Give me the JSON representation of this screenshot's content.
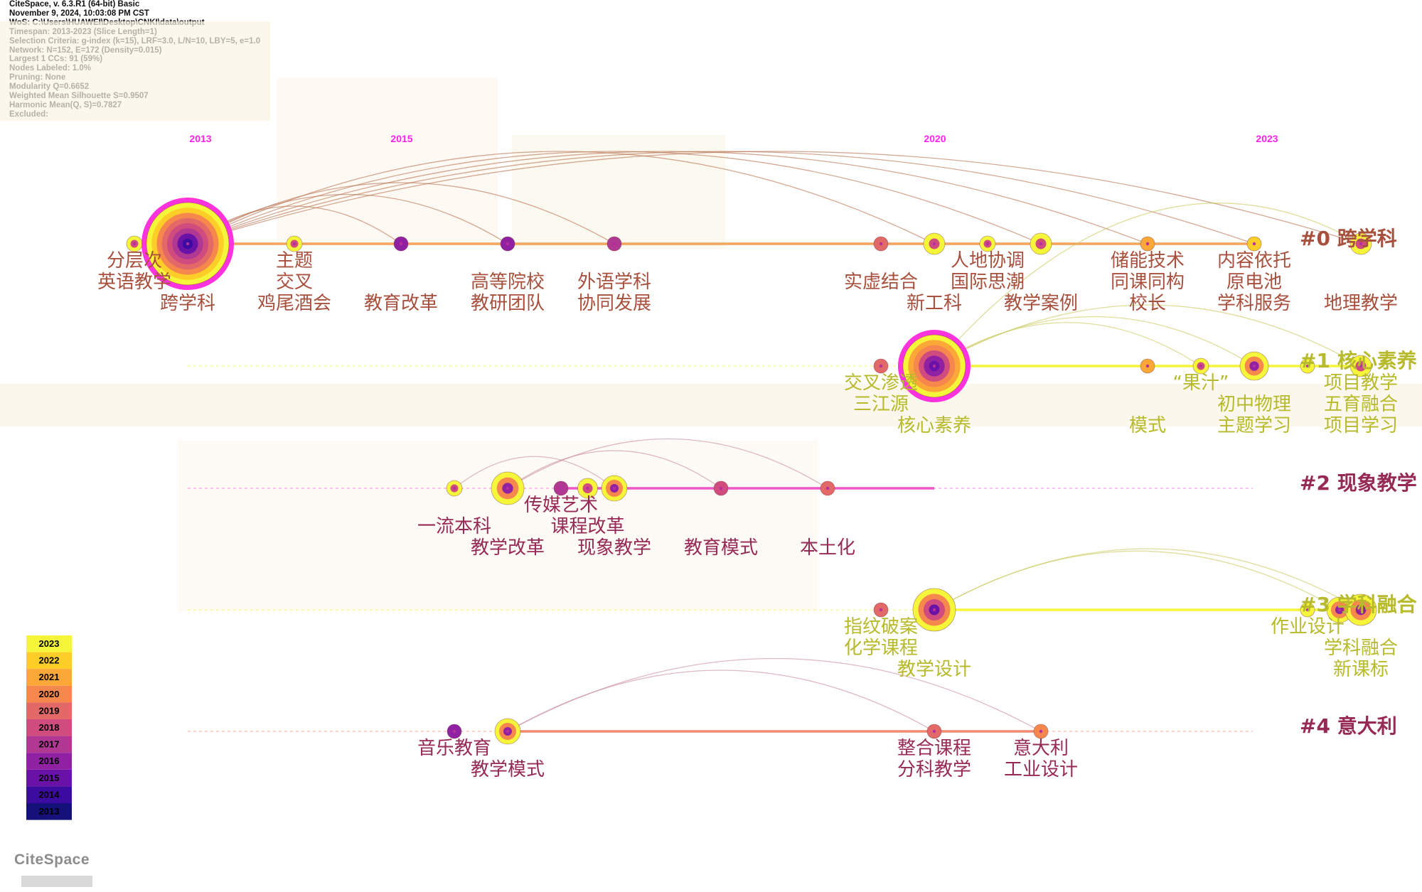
{
  "meta_lines": [
    "CiteSpace, v. 6.3.R1 (64-bit) Basic",
    "November 9, 2024, 10:03:08 PM CST",
    "WoS: C:\\Users\\HUAWEI\\Desktop\\CNKI\\data\\output",
    "Timespan: 2013-2023 (Slice Length=1)",
    "Selection Criteria: g-index (k=15), LRF=3.0, L/N=10, LBY=5, e=1.0",
    "Network: N=152, E=172 (Density=0.015)",
    "Largest 1 CCs: 91 (59%)",
    "Nodes Labeled: 1.0%",
    "Pruning: None",
    "Modularity Q=0.6652",
    "Weighted Mean Silhouette S=0.9507",
    "Harmonic Mean(Q, S)=0.7827",
    "Excluded:"
  ],
  "logo_text": "CiteSpace",
  "chart_data": {
    "type": "timeline",
    "x_range": [
      2012.3,
      2023.5
    ],
    "year_labels": [
      2013,
      2015,
      2020,
      2023
    ],
    "legend": {
      "years": [
        2023,
        2022,
        2021,
        2020,
        2019,
        2018,
        2017,
        2016,
        2015,
        2014,
        2013
      ],
      "colors": [
        "#f5f53a",
        "#fcce27",
        "#fba838",
        "#f6874d",
        "#e36868",
        "#d04c7e",
        "#b03792",
        "#8f21a2",
        "#6a11a8",
        "#3c0ba0",
        "#16107a"
      ]
    },
    "clusters": [
      {
        "id": "#0",
        "name": "跨学科",
        "label_color": "#a8503e",
        "line_color": "#f6a45a",
        "line_style": "solid",
        "line_start": 2013,
        "line_end": 2023,
        "nodes": [
          {
            "x": 2012.5,
            "size": 11,
            "year": 2013
          },
          {
            "x": 2013.0,
            "size": 58,
            "year": 2017,
            "ring": true
          },
          {
            "x": 2014.0,
            "size": 11,
            "year": 2014
          },
          {
            "x": 2015.0,
            "size": 10,
            "year": 2016
          },
          {
            "x": 2016.0,
            "size": 10,
            "year": 2016
          },
          {
            "x": 2017.0,
            "size": 10,
            "year": 2017
          },
          {
            "x": 2019.5,
            "size": 10,
            "year": 2019
          },
          {
            "x": 2020.0,
            "size": 15,
            "year": 2019
          },
          {
            "x": 2020.5,
            "size": 11,
            "year": 2020
          },
          {
            "x": 2021.0,
            "size": 15,
            "year": 2020
          },
          {
            "x": 2022.0,
            "size": 10,
            "year": 2021
          },
          {
            "x": 2023.0,
            "size": 10,
            "year": 2022
          },
          {
            "x": 2024.0,
            "size": 15,
            "year": 2023
          }
        ],
        "labels": [
          {
            "x": 2012.5,
            "row": 0,
            "text": "分层次"
          },
          {
            "x": 2012.5,
            "row": 1,
            "text": "英语教学"
          },
          {
            "x": 2013.0,
            "row": 2,
            "text": "跨学科"
          },
          {
            "x": 2014.0,
            "row": 0,
            "text": "主题"
          },
          {
            "x": 2014.0,
            "row": 1,
            "text": "交叉"
          },
          {
            "x": 2014.0,
            "row": 2,
            "text": "鸡尾酒会"
          },
          {
            "x": 2015.0,
            "row": 2,
            "text": "教育改革"
          },
          {
            "x": 2016.0,
            "row": 1,
            "text": "高等院校"
          },
          {
            "x": 2016.0,
            "row": 2,
            "text": "教研团队"
          },
          {
            "x": 2017.0,
            "row": 1,
            "text": "外语学科"
          },
          {
            "x": 2017.0,
            "row": 2,
            "text": "协同发展"
          },
          {
            "x": 2019.5,
            "row": 1,
            "text": "实虚结合"
          },
          {
            "x": 2020.5,
            "row": 0,
            "text": "人地协调"
          },
          {
            "x": 2020.5,
            "row": 1,
            "text": "国际思潮"
          },
          {
            "x": 2020.0,
            "row": 2,
            "text": "新工科"
          },
          {
            "x": 2021.0,
            "row": 2,
            "text": "教学案例"
          },
          {
            "x": 2022.0,
            "row": 0,
            "text": "储能技术"
          },
          {
            "x": 2022.0,
            "row": 1,
            "text": "同课同构"
          },
          {
            "x": 2022.0,
            "row": 2,
            "text": "校长"
          },
          {
            "x": 2023.0,
            "row": 0,
            "text": "内容依托"
          },
          {
            "x": 2023.0,
            "row": 1,
            "text": "原电池"
          },
          {
            "x": 2023.0,
            "row": 2,
            "text": "学科服务"
          },
          {
            "x": 2024.0,
            "row": 2,
            "text": "地理教学"
          }
        ]
      },
      {
        "id": "#1",
        "name": "核心素养",
        "label_color": "#b7ba2a",
        "line_color": "#f5f53a",
        "line_style": "solid",
        "line_start": 2020.0,
        "line_end": 2024.0,
        "nodes": [
          {
            "x": 2019.5,
            "size": 10,
            "year": 2019
          },
          {
            "x": 2020.0,
            "size": 44,
            "year": 2019,
            "ring": true
          },
          {
            "x": 2022.0,
            "size": 10,
            "year": 2021
          },
          {
            "x": 2022.5,
            "size": 11,
            "year": 2022
          },
          {
            "x": 2023.0,
            "size": 20,
            "year": 2023
          },
          {
            "x": 2023.5,
            "size": 10,
            "year": 2023
          },
          {
            "x": 2024.0,
            "size": 15,
            "year": 2023
          }
        ],
        "labels": [
          {
            "x": 2019.5,
            "row": 0,
            "text": "交叉渗透"
          },
          {
            "x": 2019.5,
            "row": 1,
            "text": "三江源"
          },
          {
            "x": 2020.0,
            "row": 2,
            "text": "核心素养"
          },
          {
            "x": 2022.5,
            "row": 0,
            "text": "“果汁”"
          },
          {
            "x": 2022.0,
            "row": 2,
            "text": "模式"
          },
          {
            "x": 2023.0,
            "row": 1,
            "text": "初中物理"
          },
          {
            "x": 2023.0,
            "row": 2,
            "text": "主题学习"
          },
          {
            "x": 2024.0,
            "row": 0,
            "text": "项目教学"
          },
          {
            "x": 2024.0,
            "row": 1,
            "text": "五育融合"
          },
          {
            "x": 2024.0,
            "row": 2,
            "text": "项目学习"
          }
        ]
      },
      {
        "id": "#2",
        "name": "现象教学",
        "label_color": "#962a55",
        "line_color": "#ee57c8",
        "line_style": "solid",
        "line_start": 2016.5,
        "line_end": 2020.0,
        "nodes": [
          {
            "x": 2015.5,
            "size": 11,
            "year": 2016
          },
          {
            "x": 2016.0,
            "size": 23,
            "year": 2021,
            "ring": false
          },
          {
            "x": 2016.5,
            "size": 10,
            "year": 2017
          },
          {
            "x": 2016.75,
            "size": 14,
            "year": 2017
          },
          {
            "x": 2017.0,
            "size": 18,
            "year": 2022
          },
          {
            "x": 2018.0,
            "size": 10,
            "year": 2018
          },
          {
            "x": 2019.0,
            "size": 10,
            "year": 2019
          }
        ],
        "labels": [
          {
            "x": 2016.5,
            "row": 0,
            "text": "传媒艺术"
          },
          {
            "x": 2016.75,
            "row": 1,
            "text": "课程改革"
          },
          {
            "x": 2015.5,
            "row": 1,
            "text": "一流本科"
          },
          {
            "x": 2016.0,
            "row": 2,
            "text": "教学改革"
          },
          {
            "x": 2017.0,
            "row": 2,
            "text": "现象教学"
          },
          {
            "x": 2018.0,
            "row": 2,
            "text": "教育模式"
          },
          {
            "x": 2019.0,
            "row": 2,
            "text": "本土化"
          }
        ]
      },
      {
        "id": "#3",
        "name": "学科融合",
        "label_color": "#b7ba2a",
        "line_color": "#f5f53a",
        "line_style": "solid",
        "line_start": 2020.0,
        "line_end": 2023.8,
        "nodes": [
          {
            "x": 2019.5,
            "size": 10,
            "year": 2019
          },
          {
            "x": 2020.0,
            "size": 30,
            "year": 2023
          },
          {
            "x": 2023.5,
            "size": 10,
            "year": 2023
          },
          {
            "x": 2023.8,
            "size": 18,
            "year": 2023
          },
          {
            "x": 2024.0,
            "size": 22,
            "year": 2023
          }
        ],
        "labels": [
          {
            "x": 2019.5,
            "row": 0,
            "text": "指纹破案"
          },
          {
            "x": 2019.5,
            "row": 1,
            "text": "化学课程"
          },
          {
            "x": 2020.0,
            "row": 2,
            "text": "教学设计"
          },
          {
            "x": 2023.5,
            "row": 0,
            "text": "作业设计"
          },
          {
            "x": 2024.0,
            "row": 1,
            "text": "学科融合"
          },
          {
            "x": 2024.0,
            "row": 2,
            "text": "新课标"
          }
        ]
      },
      {
        "id": "#4",
        "name": "意大利",
        "label_color": "#962a55",
        "line_color": "#f28a72",
        "line_style": "solid",
        "line_start": 2016.0,
        "line_end": 2021.0,
        "nodes": [
          {
            "x": 2015.5,
            "size": 10,
            "year": 2016
          },
          {
            "x": 2016.0,
            "size": 18,
            "year": 2022
          },
          {
            "x": 2020.0,
            "size": 10,
            "year": 2019
          },
          {
            "x": 2021.0,
            "size": 10,
            "year": 2020
          }
        ],
        "labels": [
          {
            "x": 2015.5,
            "row": 0,
            "text": "音乐教育"
          },
          {
            "x": 2016.0,
            "row": 1,
            "text": "教学模式"
          },
          {
            "x": 2020.0,
            "row": 0,
            "text": "整合课程"
          },
          {
            "x": 2020.0,
            "row": 1,
            "text": "分科教学"
          },
          {
            "x": 2021.0,
            "row": 0,
            "text": "意大利"
          },
          {
            "x": 2021.0,
            "row": 1,
            "text": "工业设计"
          }
        ]
      }
    ],
    "links": [
      {
        "from": [
          0,
          2013.0
        ],
        "to": [
          0,
          2016.0
        ]
      },
      {
        "from": [
          0,
          2013.0
        ],
        "to": [
          0,
          2017.0
        ]
      },
      {
        "from": [
          0,
          2013.0
        ],
        "to": [
          0,
          2020.0
        ]
      },
      {
        "from": [
          0,
          2013.0
        ],
        "to": [
          0,
          2021.0
        ]
      },
      {
        "from": [
          0,
          2013.0
        ],
        "to": [
          0,
          2022.0
        ]
      },
      {
        "from": [
          0,
          2013.0
        ],
        "to": [
          0,
          2023.0
        ]
      },
      {
        "from": [
          0,
          2013.0
        ],
        "to": [
          0,
          2024.0
        ]
      },
      {
        "from": [
          0,
          2013.0
        ],
        "to": [
          0,
          2015.0
        ]
      },
      {
        "from": [
          1,
          2020.0
        ],
        "to": [
          1,
          2023.0
        ]
      },
      {
        "from": [
          1,
          2020.0
        ],
        "to": [
          1,
          2024.0
        ]
      },
      {
        "from": [
          1,
          2020.0
        ],
        "to": [
          1,
          2022.5
        ]
      },
      {
        "from": [
          1,
          2020.0
        ],
        "to": [
          0,
          2024.0
        ]
      },
      {
        "from": [
          2,
          2016.0
        ],
        "to": [
          2,
          2019.0
        ]
      },
      {
        "from": [
          2,
          2016.0
        ],
        "to": [
          2,
          2018.0
        ]
      },
      {
        "from": [
          2,
          2015.5
        ],
        "to": [
          2,
          2017.0
        ]
      },
      {
        "from": [
          3,
          2020.0
        ],
        "to": [
          3,
          2023.8
        ]
      },
      {
        "from": [
          3,
          2020.0
        ],
        "to": [
          3,
          2024.0
        ]
      },
      {
        "from": [
          4,
          2016.0
        ],
        "to": [
          4,
          2021.0
        ]
      },
      {
        "from": [
          4,
          2016.0
        ],
        "to": [
          4,
          2020.0
        ]
      }
    ]
  }
}
